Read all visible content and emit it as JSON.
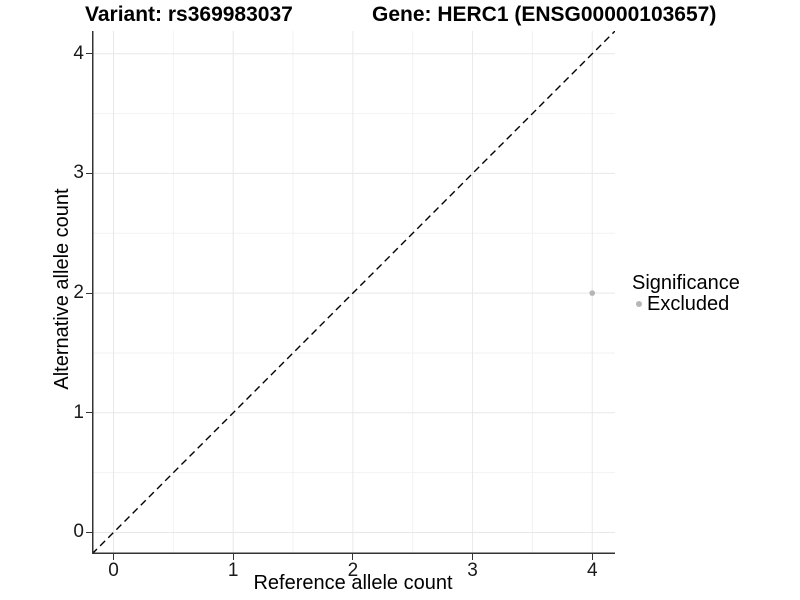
{
  "chart_data": {
    "type": "scatter",
    "titles": {
      "left": "Variant: rs369983037",
      "right": "Gene: HERC1 (ENSG00000103657)"
    },
    "xlabel": "Reference allele count",
    "ylabel": "Alternative allele count",
    "xlim": [
      -0.18,
      4.19
    ],
    "ylim": [
      -0.18,
      4.19
    ],
    "x_ticks": [
      0,
      1,
      2,
      3,
      4
    ],
    "y_ticks": [
      0,
      1,
      2,
      3,
      4
    ],
    "x_minor_ticks": [
      0.5,
      1.5,
      2.5,
      3.5
    ],
    "y_minor_ticks": [
      0.5,
      1.5,
      2.5,
      3.5
    ],
    "grid": true,
    "reference_line": {
      "slope": 1,
      "intercept": 0,
      "style": "dashed",
      "color": "#000000"
    },
    "series": [
      {
        "name": "Excluded",
        "color": "#b6b6b6",
        "points": [
          {
            "x": 4,
            "y": 2
          }
        ]
      }
    ],
    "legend": {
      "title": "Significance",
      "position": "right",
      "entries": [
        {
          "label": "Excluded",
          "color": "#b6b6b6"
        }
      ]
    },
    "colors": {
      "grid_major": "#e8e8e8",
      "grid_minor": "#f2f2f2",
      "axis_line": "#333333",
      "tick_text": "#1a1a1a",
      "background": "#ffffff"
    }
  }
}
